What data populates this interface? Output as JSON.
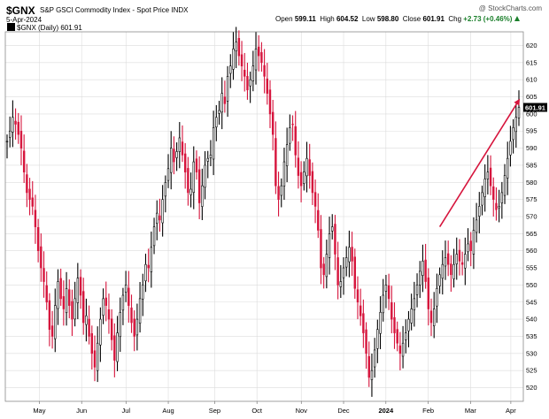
{
  "header": {
    "symbol": "$GNX",
    "name": "S&P GSCI Commodity Index - Spot Price INDX",
    "date": "5-Apr-2024",
    "source": "@ StockCharts.com",
    "open_label": "Open",
    "open": "599.11",
    "high_label": "High",
    "high": "604.52",
    "low_label": "Low",
    "low": "598.80",
    "close_label": "Close",
    "close": "601.91",
    "chg_label": "Chg",
    "chg": "+2.73 (+0.46%)",
    "chg_icon": "triangle-up-icon",
    "legend": "$GNX (Daily) 601.91"
  },
  "colors": {
    "up": "#000000",
    "down": "#d6143c",
    "grid": "#dcdcdc",
    "arrow": "#d6143c"
  },
  "chart_data": {
    "type": "ohlc-bar",
    "title": "$GNX S&P GSCI Commodity Index - Spot Price INDX",
    "x_tick_labels": [
      "May",
      "Jun",
      "Jul",
      "Aug",
      "Sep",
      "Oct",
      "Nov",
      "Dec",
      "2024",
      "Feb",
      "Mar",
      "Apr"
    ],
    "y_ticks": [
      520,
      525,
      530,
      535,
      540,
      545,
      550,
      555,
      560,
      565,
      570,
      575,
      580,
      585,
      590,
      595,
      600,
      605,
      610,
      615,
      620
    ],
    "ylim": [
      516,
      624
    ],
    "grid": true,
    "last_value": "601.91",
    "annotation": {
      "type": "arrow",
      "color": "red",
      "from": {
        "x": "2024-02-26",
        "y": 567
      },
      "to": {
        "x": "2024-04-05",
        "y": 604
      }
    },
    "series": [
      {
        "close": [
          592,
          595,
          599,
          597,
          594,
          590,
          583,
          577,
          575,
          573,
          567,
          560,
          555,
          551,
          545,
          537,
          535,
          544,
          551,
          546,
          543,
          549,
          544,
          540,
          546,
          552,
          547,
          539,
          541,
          535,
          530,
          526,
          533,
          540,
          546,
          544,
          540,
          534,
          528,
          536,
          542,
          547,
          550,
          544,
          539,
          535,
          540,
          546,
          550,
          556,
          555,
          561,
          567,
          571,
          569,
          575,
          580,
          584,
          590,
          586,
          589,
          593,
          588,
          583,
          577,
          578,
          586,
          583,
          574,
          579,
          585,
          587,
          588,
          596,
          599,
          601,
          606,
          603,
          611,
          614,
          619,
          621,
          617,
          614,
          611,
          607,
          610,
          614,
          619,
          617,
          615,
          611,
          606,
          600,
          594,
          579,
          575,
          579,
          586,
          591,
          596,
          597,
          588,
          582,
          579,
          583,
          587,
          582,
          577,
          573,
          566,
          555,
          553,
          559,
          565,
          567,
          559,
          550,
          551,
          555,
          558,
          561,
          557,
          549,
          545,
          541,
          536,
          530,
          523,
          525,
          531,
          537,
          542,
          547,
          550,
          546,
          540,
          536,
          533,
          530,
          533,
          536,
          540,
          543,
          546,
          550,
          554,
          557,
          551,
          543,
          539,
          543,
          549,
          553,
          556,
          558,
          556,
          553,
          556,
          559,
          557,
          556,
          559,
          562,
          560,
          566,
          569,
          573,
          577,
          581,
          583,
          579,
          575,
          572,
          573,
          577,
          582,
          587,
          592,
          596,
          599,
          601.91
        ]
      }
    ]
  }
}
